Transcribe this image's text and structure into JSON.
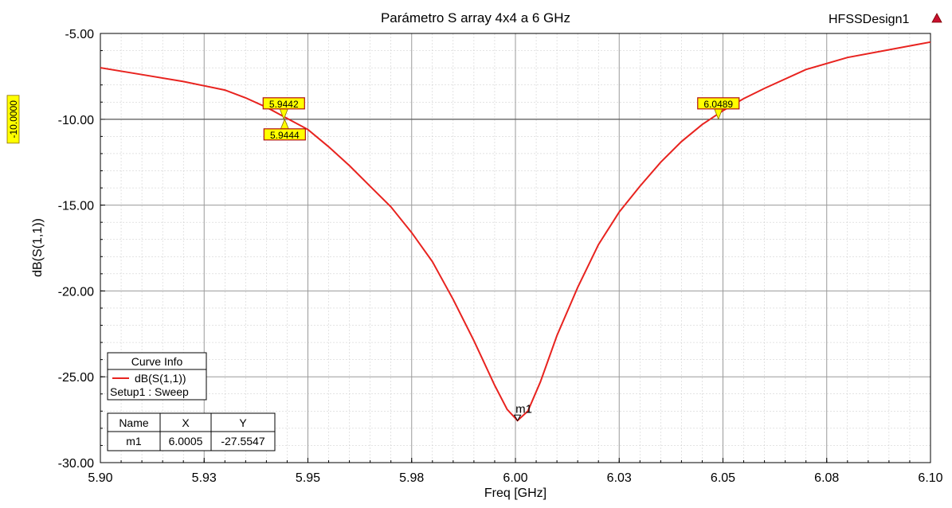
{
  "chart_data": {
    "type": "line",
    "title": "Parámetro S array 4x4 a 6 GHz",
    "design_name": "HFSSDesign1",
    "xlabel": "Freq [GHz]",
    "ylabel": "dB(S(1,1))",
    "xlim": [
      5.9,
      6.1
    ],
    "ylim": [
      -30.0,
      -5.0
    ],
    "x_ticks": [
      "5.90",
      "5.93",
      "5.95",
      "5.98",
      "6.00",
      "6.03",
      "6.05",
      "6.08",
      "6.10"
    ],
    "x_tick_values": [
      5.9,
      5.925,
      5.95,
      5.975,
      6.0,
      6.025,
      6.05,
      6.075,
      6.1
    ],
    "y_ticks": [
      "-5.00",
      "-10.00",
      "-15.00",
      "-20.00",
      "-25.00",
      "-30.00"
    ],
    "y_tick_values": [
      -5,
      -10,
      -15,
      -20,
      -25,
      -30
    ],
    "grid": true,
    "series": [
      {
        "name": "dB(S(1,1))",
        "color": "#e8231f",
        "x": [
          5.9,
          5.91,
          5.92,
          5.93,
          5.935,
          5.94,
          5.945,
          5.95,
          5.955,
          5.96,
          5.965,
          5.97,
          5.975,
          5.98,
          5.985,
          5.99,
          5.995,
          5.998,
          6.0005,
          6.003,
          6.006,
          6.01,
          6.015,
          6.02,
          6.025,
          6.03,
          6.035,
          6.04,
          6.045,
          6.05,
          6.055,
          6.06,
          6.07,
          6.08,
          6.09,
          6.1
        ],
        "y": [
          -7.0,
          -7.4,
          -7.8,
          -8.3,
          -8.75,
          -9.3,
          -9.95,
          -10.6,
          -11.6,
          -12.7,
          -13.9,
          -15.1,
          -16.6,
          -18.3,
          -20.5,
          -22.9,
          -25.5,
          -26.9,
          -27.55,
          -27.0,
          -25.3,
          -22.6,
          -19.8,
          -17.3,
          -15.4,
          -13.9,
          -12.5,
          -11.3,
          -10.3,
          -9.5,
          -8.8,
          -8.2,
          -7.1,
          -6.4,
          -5.95,
          -5.5
        ]
      }
    ],
    "reference_line": {
      "y": -10.0,
      "label": "-10.0000"
    },
    "markers": [
      {
        "x": 5.9442,
        "y": -10.0,
        "label": "5.9442"
      },
      {
        "x": 5.9444,
        "y": -10.0,
        "label": "5.9444"
      },
      {
        "x": 6.0489,
        "y": -10.0,
        "label": "6.0489"
      },
      {
        "x": 6.0005,
        "y": -27.5547,
        "label": "m1"
      }
    ],
    "legend": {
      "title": "Curve Info",
      "entry": "dB(S(1,1))",
      "setup": "Setup1 : Sweep",
      "placement": "bottom-left"
    },
    "marker_table": {
      "headers": [
        "Name",
        "X",
        "Y"
      ],
      "rows": [
        [
          "m1",
          "6.0005",
          "-27.5547"
        ]
      ]
    }
  }
}
